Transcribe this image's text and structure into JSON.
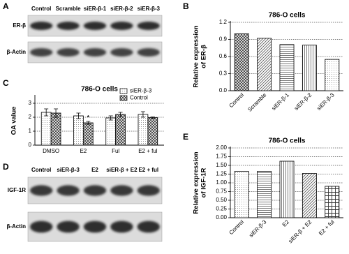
{
  "blots": [
    {
      "panel_label": "A",
      "lanes": [
        "Control",
        "Scramble",
        "siER-β-1",
        "siER-β-2",
        "siER-β-3"
      ],
      "rows": [
        "ER-β",
        "β-Actin"
      ]
    },
    {
      "panel_label": "D",
      "lanes": [
        "Control",
        "siER-β-3",
        "E2",
        "siER-β + E2",
        "E2 + ful"
      ],
      "rows": [
        "IGF-1R",
        "β-Actin"
      ]
    }
  ],
  "chart_data": [
    {
      "type": "bar",
      "panel_label": "B",
      "title": "786-O cells",
      "ylabel": [
        "Relative expression",
        "of ER-β"
      ],
      "categories": [
        "Control",
        "Scramble",
        "siER-β-1",
        "siER-β-2",
        "siER-β-3"
      ],
      "values": [
        1.0,
        0.92,
        0.81,
        0.8,
        0.55
      ],
      "ylim": [
        0,
        1.2
      ],
      "yticks": [
        {
          "value": 0,
          "label": "0.0"
        },
        0.3,
        0.6,
        0.9,
        1.2
      ],
      "grid": true
    },
    {
      "type": "bar",
      "panel_label": "C",
      "title": "786-O cells",
      "ylabel": [
        "OA value"
      ],
      "categories": [
        "DMSO",
        "E2",
        "Ful",
        "E2 + ful"
      ],
      "series": [
        {
          "name": "siER-β-3",
          "values": [
            2.35,
            2.1,
            1.95,
            2.2
          ],
          "errors": [
            0.25,
            0.2,
            0.15,
            0.2
          ]
        },
        {
          "name": "Control",
          "values": [
            2.3,
            1.6,
            2.2,
            1.97
          ],
          "errors": [
            0.3,
            0.1,
            0.15,
            0.05
          ]
        }
      ],
      "annotation": "*",
      "ylim": [
        0,
        3.5
      ],
      "yticks": [
        0,
        1,
        2,
        3
      ],
      "grid": true
    },
    {
      "type": "bar",
      "panel_label": "E",
      "title": "786-O cells",
      "ylabel": [
        "Relative expression",
        "of IGF-1R"
      ],
      "categories": [
        "Control",
        "siER-β-3",
        "E2",
        "siER-β + E2",
        "E2 + ful"
      ],
      "values": [
        1.33,
        1.33,
        1.62,
        1.27,
        0.9
      ],
      "ylim": [
        0,
        2
      ],
      "yticks": [
        {
          "value": 0,
          "label": "0.00"
        },
        0.25,
        {
          "value": 0.5,
          "label": "0.50"
        },
        0.75,
        {
          "value": 1,
          "label": "1.00"
        },
        1.25,
        {
          "value": 1.5,
          "label": "1.50"
        },
        1.75,
        {
          "value": 2,
          "label": "2.00"
        }
      ],
      "grid": true
    }
  ]
}
